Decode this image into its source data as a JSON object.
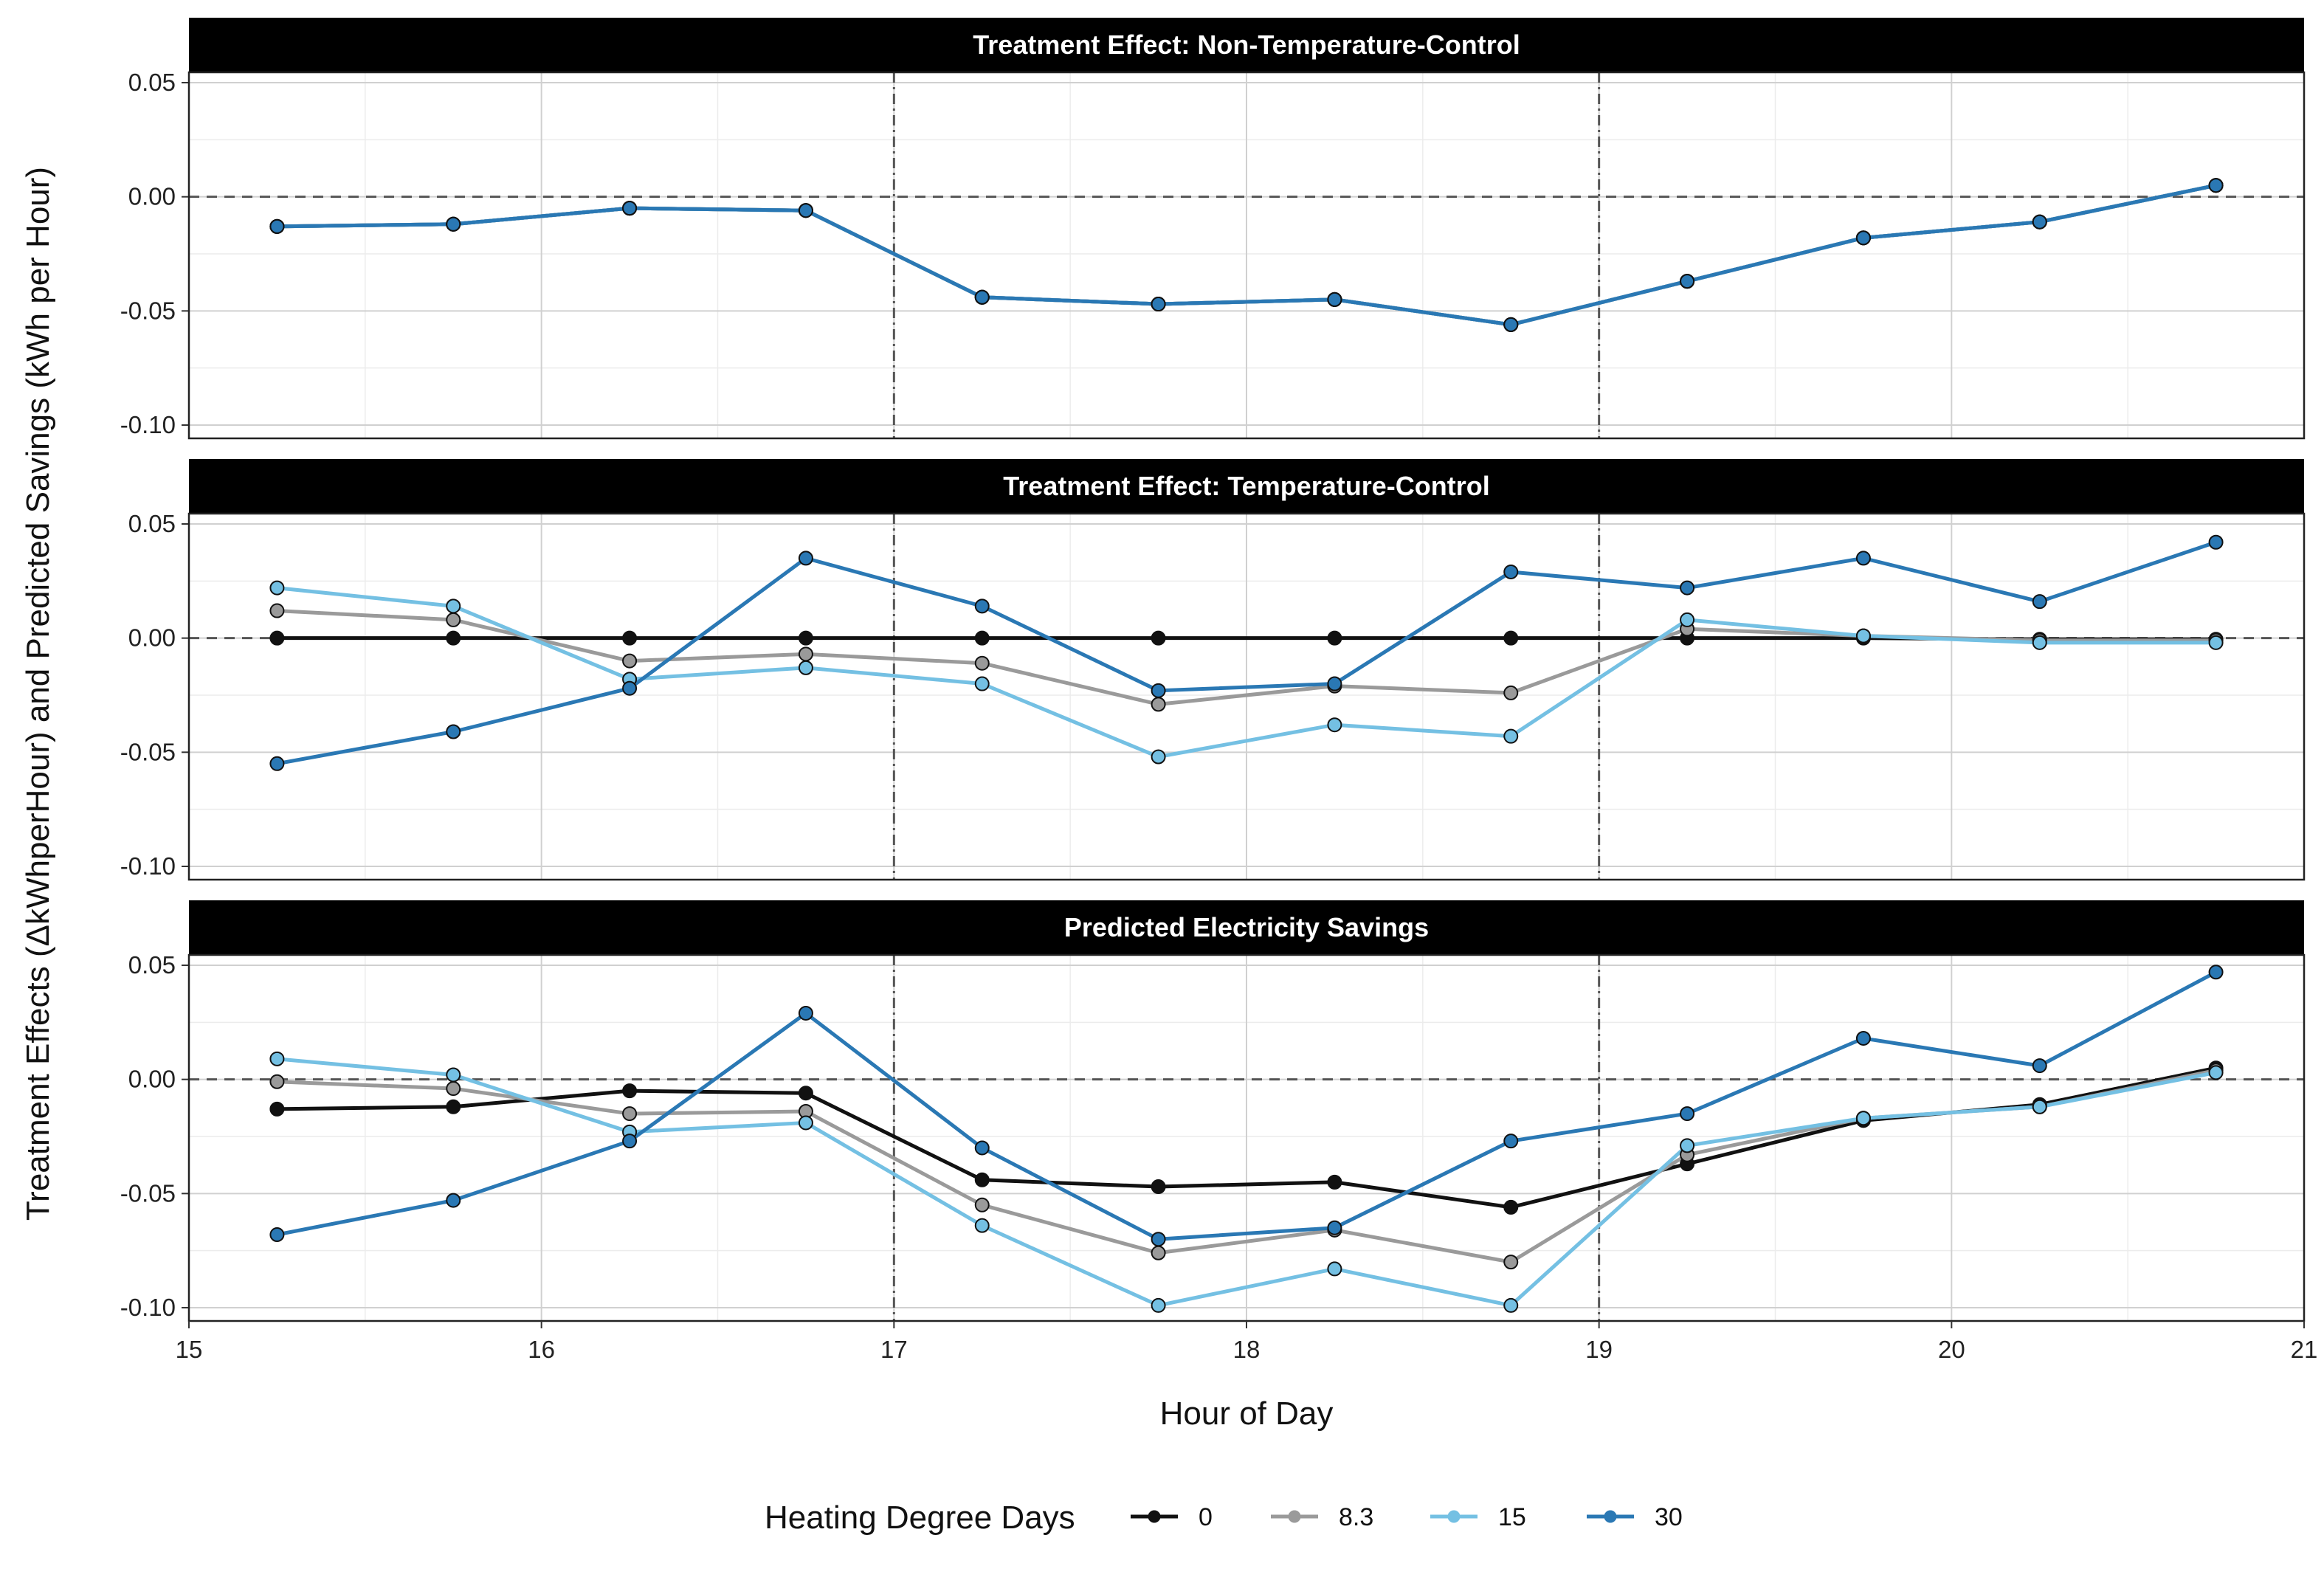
{
  "chart_data": {
    "type": "line",
    "xlabel": "Hour of Day",
    "ylabel": "Treatment Effects (ΔkWhperHour)  and  Predicted Savings (kWh per Hour)",
    "xlim": [
      15,
      21
    ],
    "ylim": [
      -0.1,
      0.05
    ],
    "x_ticks": [
      "15",
      "16",
      "17",
      "18",
      "19",
      "20",
      "21"
    ],
    "y_ticks": [
      "0.05",
      "0.00",
      "-0.05",
      "-0.10"
    ],
    "reference_lines": {
      "y_dashed": 0,
      "x_dotdash": [
        17,
        19
      ]
    },
    "grid": true,
    "legend": {
      "title": "Heating Degree Days",
      "position": "bottom",
      "entries": [
        {
          "label": "0",
          "color": "#111111"
        },
        {
          "label": "8.3",
          "color": "#9a9a9a"
        },
        {
          "label": "15",
          "color": "#74c0e3"
        },
        {
          "label": "30",
          "color": "#2a78b4"
        }
      ]
    },
    "panels": [
      {
        "title": "Treatment Effect: Non-Temperature-Control",
        "x": [
          15.25,
          15.75,
          16.25,
          16.75,
          17.25,
          17.75,
          18.25,
          18.75,
          19.25,
          19.75,
          20.25,
          20.75
        ],
        "series": [
          {
            "name": "0",
            "color": "#111111",
            "values": [
              -0.013,
              -0.012,
              -0.005,
              -0.006,
              -0.044,
              -0.047,
              -0.045,
              -0.056,
              -0.037,
              -0.018,
              -0.011,
              0.005
            ]
          },
          {
            "name": "8.3",
            "color": "#9a9a9a",
            "values": [
              -0.013,
              -0.012,
              -0.005,
              -0.006,
              -0.044,
              -0.047,
              -0.045,
              -0.056,
              -0.037,
              -0.018,
              -0.011,
              0.005
            ]
          },
          {
            "name": "15",
            "color": "#74c0e3",
            "values": [
              -0.013,
              -0.012,
              -0.005,
              -0.006,
              -0.044,
              -0.047,
              -0.045,
              -0.056,
              -0.037,
              -0.018,
              -0.011,
              0.005
            ]
          },
          {
            "name": "30",
            "color": "#2a78b4",
            "values": [
              -0.013,
              -0.012,
              -0.005,
              -0.006,
              -0.044,
              -0.047,
              -0.045,
              -0.056,
              -0.037,
              -0.018,
              -0.011,
              0.005
            ]
          }
        ]
      },
      {
        "title": "Treatment Effect: Temperature-Control",
        "x": [
          15.25,
          15.75,
          16.25,
          16.75,
          17.25,
          17.75,
          18.25,
          18.75,
          19.25,
          19.75,
          20.25,
          20.75
        ],
        "series": [
          {
            "name": "0",
            "color": "#111111",
            "values": [
              0.0,
              0.0,
              0.0,
              0.0,
              0.0,
              0.0,
              0.0,
              0.0,
              0.0,
              0.0,
              -0.0005,
              -0.0005
            ]
          },
          {
            "name": "8.3",
            "color": "#9a9a9a",
            "values": [
              0.012,
              0.008,
              -0.01,
              -0.007,
              -0.011,
              -0.029,
              -0.021,
              -0.024,
              0.004,
              0.001,
              -0.001,
              -0.001
            ]
          },
          {
            "name": "15",
            "color": "#74c0e3",
            "values": [
              0.022,
              0.014,
              -0.018,
              -0.013,
              -0.02,
              -0.052,
              -0.038,
              -0.043,
              0.008,
              0.001,
              -0.002,
              -0.002
            ]
          },
          {
            "name": "30",
            "color": "#2a78b4",
            "values": [
              -0.055,
              -0.041,
              -0.022,
              0.035,
              0.014,
              -0.023,
              -0.02,
              0.029,
              0.022,
              0.035,
              0.016,
              0.042
            ]
          }
        ]
      },
      {
        "title": "Predicted Electricity Savings",
        "x": [
          15.25,
          15.75,
          16.25,
          16.75,
          17.25,
          17.75,
          18.25,
          18.75,
          19.25,
          19.75,
          20.25,
          20.75
        ],
        "series": [
          {
            "name": "0",
            "color": "#111111",
            "values": [
              -0.013,
              -0.012,
              -0.005,
              -0.006,
              -0.044,
              -0.047,
              -0.045,
              -0.056,
              -0.037,
              -0.018,
              -0.011,
              0.005
            ]
          },
          {
            "name": "8.3",
            "color": "#9a9a9a",
            "values": [
              -0.001,
              -0.004,
              -0.015,
              -0.014,
              -0.055,
              -0.076,
              -0.066,
              -0.08,
              -0.033,
              -0.017,
              -0.012,
              0.004
            ]
          },
          {
            "name": "15",
            "color": "#74c0e3",
            "values": [
              0.009,
              0.002,
              -0.023,
              -0.019,
              -0.064,
              -0.099,
              -0.083,
              -0.099,
              -0.029,
              -0.017,
              -0.012,
              0.003
            ]
          },
          {
            "name": "30",
            "color": "#2a78b4",
            "values": [
              -0.068,
              -0.053,
              -0.027,
              0.029,
              -0.03,
              -0.07,
              -0.065,
              -0.027,
              -0.015,
              0.018,
              0.006,
              0.047
            ]
          }
        ]
      }
    ]
  }
}
